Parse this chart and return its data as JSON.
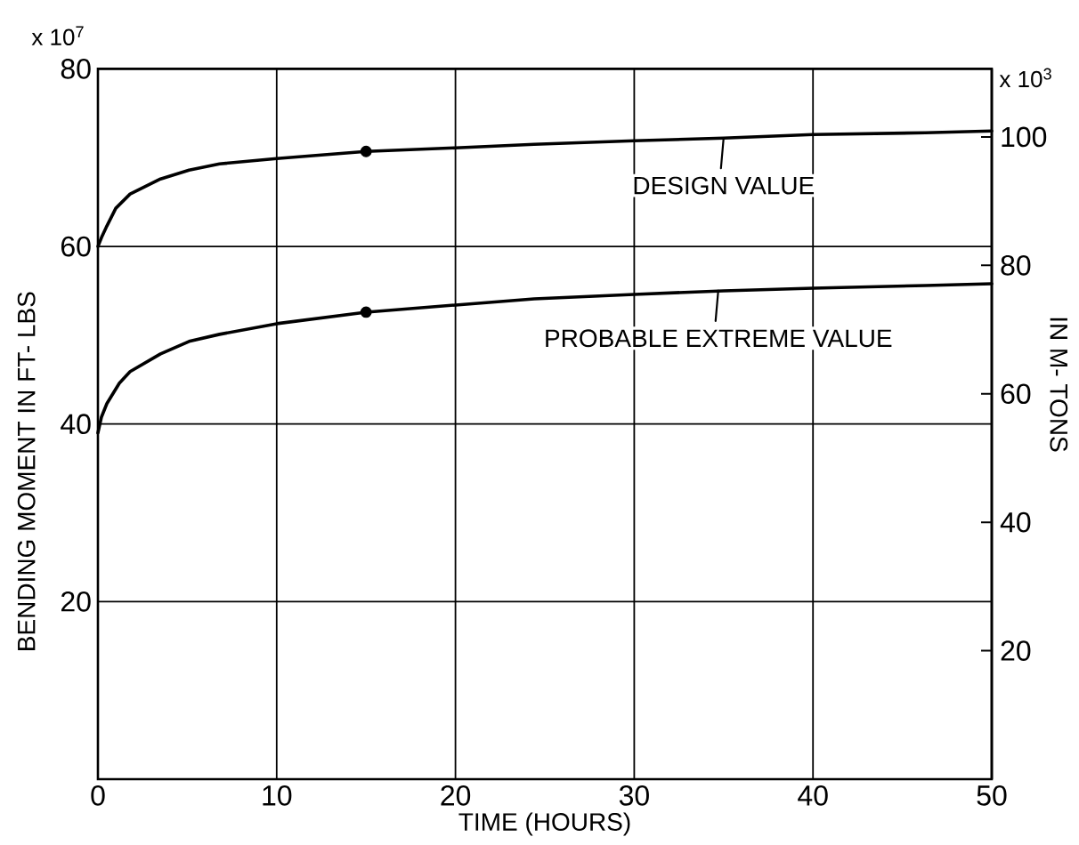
{
  "chart_data": {
    "type": "line",
    "xlabel": "TIME (HOURS)",
    "ylabel": "BENDING MOMENT IN FT- LBS",
    "y2label": "IN M- TONS",
    "series": [
      {
        "color": "#000000",
        "x": [
          0,
          0.2,
          0.5,
          1,
          1.8,
          3.5,
          5.1,
          6.8,
          10,
          15,
          20,
          24.4,
          30,
          35,
          40,
          46.3,
          50
        ],
        "values": [
          60,
          61,
          62.3,
          64.3,
          65.9,
          67.6,
          68.6,
          69.3,
          69.9,
          70.7,
          71.1,
          71.5,
          71.9,
          72.2,
          72.6,
          72.8,
          73
        ]
      },
      {
        "color": "#000000",
        "x": [
          0,
          0.2,
          0.5,
          1.2,
          1.8,
          3.5,
          5.1,
          6.8,
          10,
          15,
          20,
          24.4,
          30,
          35,
          40,
          46.3,
          50
        ],
        "values": [
          39,
          40.8,
          42.3,
          44.6,
          45.9,
          47.9,
          49.3,
          50.1,
          51.3,
          52.6,
          53.4,
          54.1,
          54.6,
          55,
          55.3,
          55.6,
          55.8
        ]
      },
      {
        "type": "scatter",
        "marker": "circle",
        "color": "#000000",
        "x": [
          15,
          15
        ],
        "values": [
          70.7,
          52.6
        ]
      }
    ],
    "xlim": [
      0,
      50
    ],
    "ylim": [
      0,
      80
    ],
    "y2lim": [
      0,
      110.6
    ],
    "xticks": [
      0,
      10,
      20,
      30,
      40,
      50
    ],
    "yticks": [
      20,
      40,
      60,
      80
    ],
    "y2ticks": [
      20,
      40,
      60,
      80,
      100
    ],
    "grid": true,
    "marker": "none",
    "annotations": [
      "x 10$^{7}$",
      "x 10$^{3}$",
      {
        "text": "DESIGN VALUE",
        "x": 35,
        "y": 72.2
      },
      {
        "text": "PROBABLE EXTREME VALUE",
        "x": 34.7,
        "y": 55
      }
    ]
  }
}
